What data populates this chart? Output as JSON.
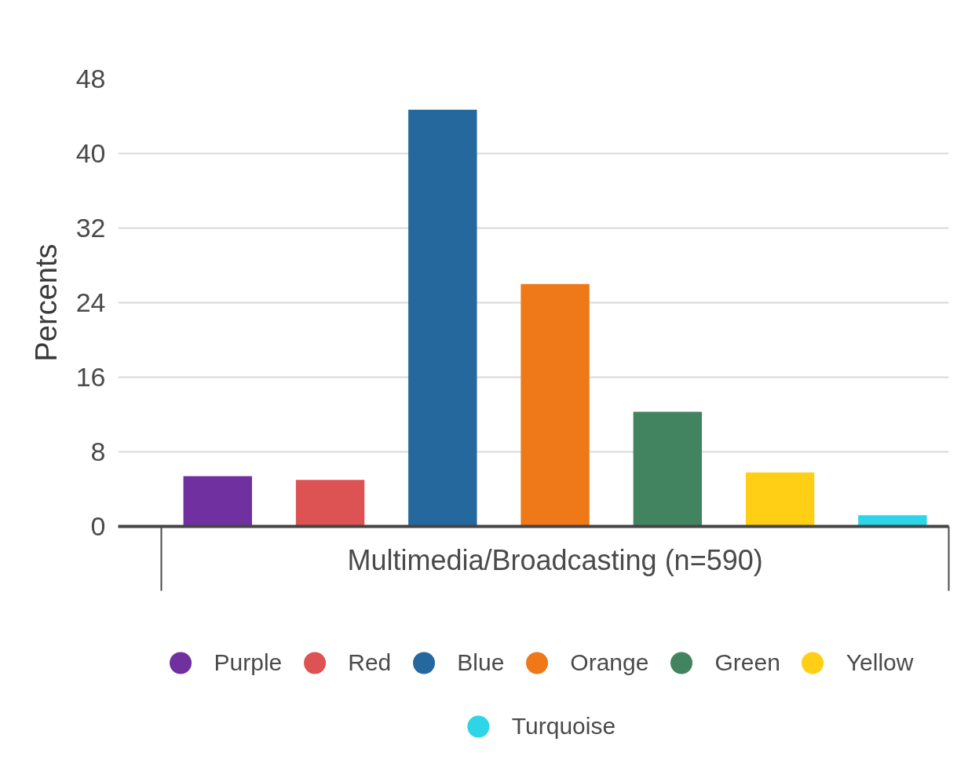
{
  "chart_data": {
    "type": "bar",
    "ylabel": "Percents",
    "categories": [
      "Multimedia/Broadcasting (n=590)"
    ],
    "series": [
      {
        "name": "Purple",
        "color": "#7030a0",
        "values": [
          5.4
        ]
      },
      {
        "name": "Red",
        "color": "#dd5353",
        "values": [
          5.0
        ]
      },
      {
        "name": "Blue",
        "color": "#24689e",
        "values": [
          44.7
        ]
      },
      {
        "name": "Orange",
        "color": "#ef7818",
        "values": [
          26.0
        ]
      },
      {
        "name": "Green",
        "color": "#428360",
        "values": [
          12.3
        ]
      },
      {
        "name": "Yellow",
        "color": "#fecf14",
        "values": [
          5.8
        ]
      },
      {
        "name": "Turquoise",
        "color": "#2dd5e6",
        "values": [
          1.2
        ]
      }
    ],
    "ylim": [
      0,
      48
    ],
    "yticks": [
      0,
      8,
      16,
      24,
      32,
      40,
      48
    ],
    "grid": "y",
    "legend": "bottom"
  }
}
